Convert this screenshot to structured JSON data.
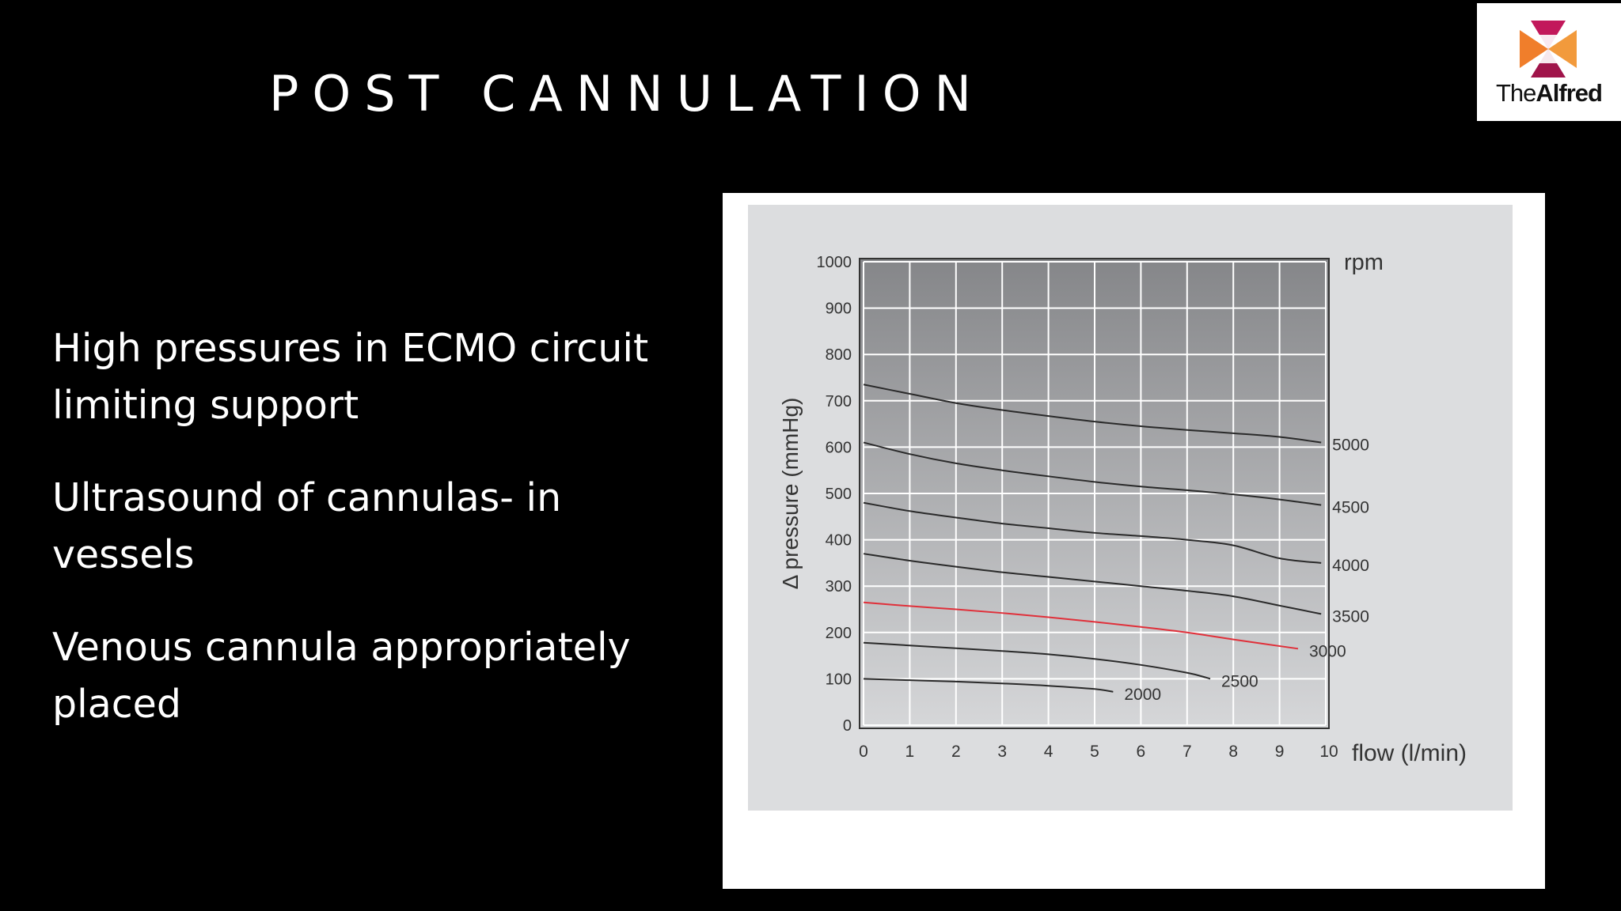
{
  "slide": {
    "title": "POST CANNULATION",
    "bullets": [
      "High pressures in ECMO circuit limiting support",
      "Ultrasound of cannulas- in vessels",
      "Venous cannula appropriately placed"
    ]
  },
  "logo": {
    "text_light": "The",
    "text_bold": "Alfred"
  },
  "colors": {
    "background": "#000000",
    "accent_curve": "#e0303a"
  },
  "chart_data": {
    "type": "line",
    "title": "",
    "xlabel": "flow (l/min)",
    "ylabel": "Δ pressure (mmHg)",
    "legend_title": "rpm",
    "xlim": [
      0,
      10
    ],
    "ylim": [
      0,
      1000
    ],
    "x_ticks": [
      "0",
      "1",
      "2",
      "3",
      "4",
      "5",
      "6",
      "7",
      "8",
      "9",
      "10"
    ],
    "y_ticks": [
      "0",
      "100",
      "200",
      "300",
      "400",
      "500",
      "600",
      "700",
      "800",
      "900",
      "1000"
    ],
    "grid": true,
    "series": [
      {
        "name": "5000",
        "highlight": false,
        "x": [
          0,
          1,
          2,
          3,
          4,
          5,
          6,
          7,
          8,
          9,
          9.9
        ],
        "y": [
          735,
          715,
          695,
          680,
          667,
          655,
          645,
          637,
          630,
          622,
          610
        ]
      },
      {
        "name": "4500",
        "highlight": false,
        "x": [
          0,
          1,
          2,
          3,
          4,
          5,
          6,
          7,
          8,
          9,
          9.9
        ],
        "y": [
          610,
          585,
          565,
          550,
          537,
          525,
          515,
          507,
          498,
          487,
          475
        ]
      },
      {
        "name": "4000",
        "highlight": false,
        "x": [
          0,
          1,
          2,
          3,
          4,
          5,
          6,
          7,
          8,
          9,
          9.9
        ],
        "y": [
          480,
          462,
          448,
          435,
          425,
          415,
          408,
          400,
          388,
          360,
          350
        ]
      },
      {
        "name": "3500",
        "highlight": false,
        "x": [
          0,
          1,
          2,
          3,
          4,
          5,
          6,
          7,
          8,
          9,
          9.9
        ],
        "y": [
          370,
          355,
          342,
          330,
          320,
          310,
          300,
          290,
          278,
          258,
          240
        ]
      },
      {
        "name": "3000",
        "highlight": true,
        "x": [
          0,
          1,
          2,
          3,
          4,
          5,
          6,
          7,
          8,
          9.4
        ],
        "y": [
          265,
          257,
          250,
          242,
          233,
          223,
          212,
          200,
          185,
          165
        ]
      },
      {
        "name": "2500",
        "highlight": false,
        "x": [
          0,
          1,
          2,
          3,
          4,
          5,
          6,
          7,
          7.4,
          7.5
        ],
        "y": [
          178,
          172,
          166,
          160,
          153,
          143,
          130,
          113,
          103,
          100
        ]
      },
      {
        "name": "2000",
        "highlight": false,
        "x": [
          0,
          1,
          2,
          3,
          4,
          5,
          5.4
        ],
        "y": [
          100,
          97,
          94,
          90,
          85,
          78,
          72
        ]
      }
    ]
  }
}
